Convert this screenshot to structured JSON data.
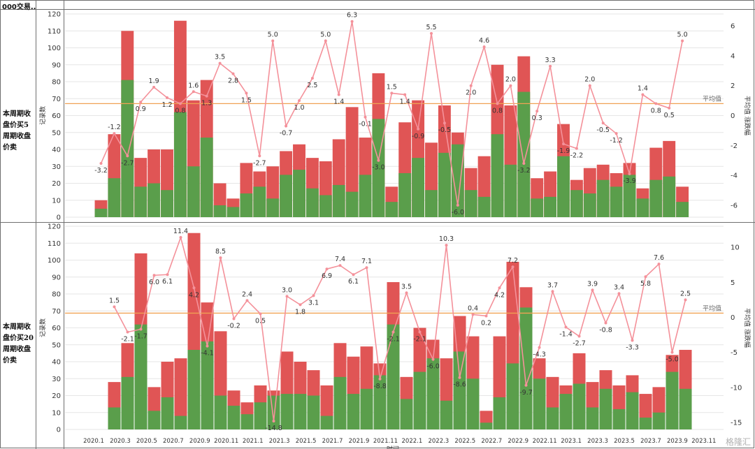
{
  "header": {
    "title": "000交易.."
  },
  "watermark": "格隆汇",
  "colors": {
    "green": "#5a9e4b",
    "red": "#e05555",
    "line": "#f4919a",
    "avg": "#f0a254",
    "grid": "#e6e6e6"
  },
  "chart_data": [
    {
      "type": "bar",
      "row_label": "本周期收盘价买5周期收盘价卖",
      "ylabel": "记录数",
      "y2label": "平均值 涨跌幅",
      "avg_label": "平均值",
      "ylim": [
        0,
        120
      ],
      "yticks": [
        0,
        10,
        20,
        30,
        40,
        50,
        60,
        70,
        80,
        90,
        100,
        110,
        120
      ],
      "y2lim": [
        -6.8,
        6.8
      ],
      "y2ticks": [
        -6,
        -4,
        -2,
        0,
        2,
        4,
        6
      ],
      "avg_value": 0.8,
      "x_tick_labels": [
        "2020.1",
        "2020.3",
        "2020.5",
        "2020.7",
        "2020.9",
        "2020.11",
        "2021.1",
        "2021.3",
        "2021.5",
        "2021.7",
        "2021.9",
        "2021.11",
        "2022.1",
        "2022.3",
        "2022.5",
        "2022.7",
        "2022.9",
        "2022.11",
        "2023.1",
        "2023.3",
        "2023.5",
        "2023.7",
        "2023.9",
        "2023.11"
      ],
      "series": [
        {
          "name": "green",
          "values": [
            5,
            23,
            81,
            18,
            20,
            16,
            62,
            30,
            47,
            7,
            6,
            14,
            18,
            11,
            25,
            28,
            17,
            13,
            19,
            15,
            25,
            58,
            9,
            26,
            35,
            16,
            38,
            43,
            16,
            12,
            49,
            31,
            74,
            11,
            12,
            36,
            16,
            14,
            22,
            18,
            25,
            11,
            22,
            24,
            9
          ]
        },
        {
          "name": "red",
          "values": [
            10,
            49,
            110,
            35,
            40,
            40,
            116,
            69,
            81,
            20,
            11,
            32,
            27,
            30,
            39,
            43,
            35,
            33,
            46,
            65,
            47,
            85,
            18,
            56,
            69,
            44,
            66,
            50,
            29,
            36,
            90,
            66,
            95,
            23,
            27,
            55,
            22,
            29,
            31,
            26,
            32,
            17,
            41,
            45,
            18
          ]
        },
        {
          "name": "change",
          "values": [
            -3.2,
            -1.2,
            -2.7,
            0.9,
            1.9,
            1.2,
            0.8,
            1.6,
            1.3,
            3.5,
            2.8,
            1.5,
            -2.7,
            5.0,
            -0.7,
            1.0,
            2.5,
            5.0,
            1.4,
            6.3,
            -0.1,
            -3.0,
            1.5,
            1.4,
            -0.9,
            5.5,
            -0.5,
            -6.0,
            2.0,
            4.6,
            0.8,
            2.0,
            -3.2,
            0.3,
            3.3,
            -1.9,
            -2.2,
            2.0,
            -0.5,
            -1.2,
            -3.9,
            1.4,
            0.8,
            0.5,
            5.0
          ]
        }
      ]
    },
    {
      "type": "bar",
      "row_label": "本周期收盘价买20周期收盘价卖",
      "ylabel": "记录数",
      "y2label": "平均值 涨跌幅",
      "avg_label": "平均值",
      "ylim": [
        0,
        120
      ],
      "yticks": [
        0,
        10,
        20,
        30,
        40,
        50,
        60,
        70,
        80,
        90,
        100,
        110,
        120
      ],
      "y2lim": [
        -16,
        13
      ],
      "y2ticks": [
        -15,
        -10,
        -5,
        0,
        5,
        10
      ],
      "avg_value": 0.6,
      "x_tick_labels": [
        "2020.1",
        "2020.3",
        "2020.5",
        "2020.7",
        "2020.9",
        "2020.11",
        "2021.1",
        "2021.3",
        "2021.5",
        "2021.7",
        "2021.9",
        "2021.11",
        "2022.1",
        "2022.3",
        "2022.5",
        "2022.7",
        "2022.9",
        "2022.11",
        "2023.1",
        "2023.3",
        "2023.5",
        "2023.7",
        "2023.9",
        "2023.11"
      ],
      "xlabel": "时间",
      "series": [
        {
          "name": "green",
          "values": [
            13,
            31,
            62,
            11,
            19,
            8,
            47,
            52,
            20,
            14,
            9,
            16,
            20,
            21,
            21,
            20,
            8,
            31,
            21,
            24,
            32,
            62,
            18,
            34,
            42,
            17,
            46,
            30,
            4,
            19,
            39,
            72,
            30,
            13,
            21,
            27,
            13,
            24,
            12,
            22,
            7,
            10,
            34,
            24
          ]
        },
        {
          "name": "red",
          "values": [
            28,
            51,
            104,
            25,
            40,
            42,
            116,
            75,
            58,
            23,
            16,
            26,
            23,
            46,
            40,
            35,
            26,
            51,
            43,
            49,
            39,
            87,
            31,
            60,
            53,
            42,
            67,
            55,
            11,
            55,
            99,
            84,
            42,
            31,
            26,
            45,
            28,
            35,
            26,
            32,
            21,
            25,
            44,
            47
          ]
        },
        {
          "name": "change",
          "values": [
            1.5,
            -2.1,
            -1.7,
            6.0,
            6.1,
            11.4,
            4.2,
            -4.1,
            8.5,
            -0.2,
            2.4,
            0.5,
            -14.8,
            3.0,
            1.8,
            3.1,
            6.9,
            7.4,
            6.1,
            7.1,
            -8.8,
            -2.1,
            3.5,
            -2.1,
            -6.0,
            10.3,
            -8.6,
            0.4,
            0.2,
            4.2,
            7.2,
            -9.7,
            -4.3,
            3.7,
            -1.4,
            -2.7,
            3.9,
            -0.8,
            3.4,
            -3.3,
            5.8,
            7.6,
            -5.0,
            2.5
          ]
        }
      ]
    }
  ]
}
